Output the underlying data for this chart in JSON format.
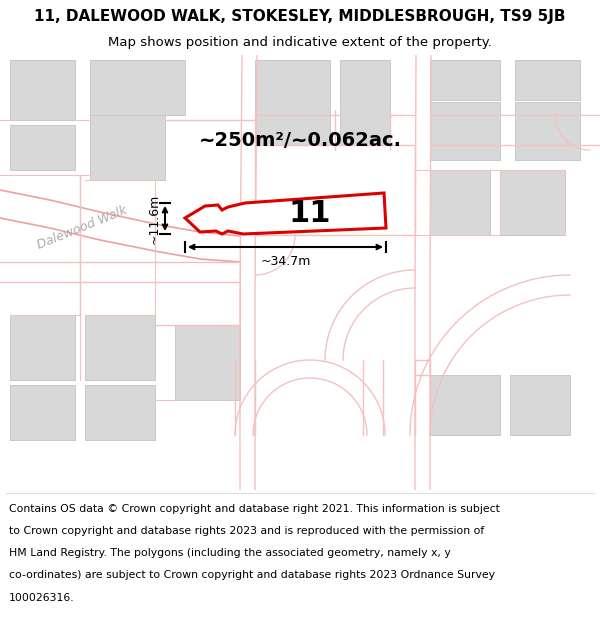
{
  "title": "11, DALEWOOD WALK, STOKESLEY, MIDDLESBROUGH, TS9 5JB",
  "subtitle": "Map shows position and indicative extent of the property.",
  "area_label": "~250m²/~0.062ac.",
  "width_label": "~34.7m",
  "height_label": "~11.6m",
  "property_number": "11",
  "copyright_lines": [
    "Contains OS data © Crown copyright and database right 2021. This information is subject",
    "to Crown copyright and database rights 2023 and is reproduced with the permission of",
    "HM Land Registry. The polygons (including the associated geometry, namely x, y",
    "co-ordinates) are subject to Crown copyright and database rights 2023 Ordnance Survey",
    "100026316."
  ],
  "bg_color": "#ffffff",
  "road_color": "#f5c0c0",
  "road_color2": "#f0a0a0",
  "property_color": "#dd0000",
  "building_fill": "#d8d8d8",
  "building_edge": "#c8c8c8",
  "title_fontsize": 11,
  "subtitle_fontsize": 9.5,
  "area_fontsize": 14,
  "num_fontsize": 22,
  "measure_fontsize": 9,
  "copyright_fontsize": 7.8,
  "street_label_fontsize": 9
}
